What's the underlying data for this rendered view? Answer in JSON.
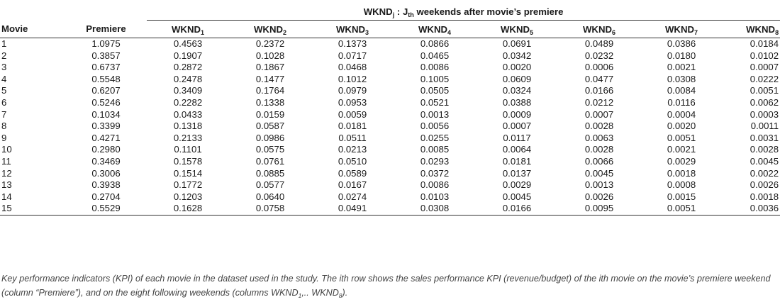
{
  "table": {
    "group_header": {
      "text": "WKND",
      "sub": "j",
      "mid": " : J",
      "sub2": "th",
      "rest": " weekends after movie’s premiere"
    },
    "columns": [
      {
        "text": "Movie",
        "sub": ""
      },
      {
        "text": "Premiere",
        "sub": ""
      },
      {
        "text": "WKND",
        "sub": "1"
      },
      {
        "text": "WKND",
        "sub": "2"
      },
      {
        "text": "WKND",
        "sub": "3"
      },
      {
        "text": "WKND",
        "sub": "4"
      },
      {
        "text": "WKND",
        "sub": "5"
      },
      {
        "text": "WKND",
        "sub": "6"
      },
      {
        "text": "WKND",
        "sub": "7"
      },
      {
        "text": "WKND",
        "sub": "8"
      }
    ],
    "rows": [
      [
        "1",
        "1.0975",
        "0.4563",
        "0.2372",
        "0.1373",
        "0.0866",
        "0.0691",
        "0.0489",
        "0.0386",
        "0.0184"
      ],
      [
        "2",
        "0.3857",
        "0.1907",
        "0.1028",
        "0.0717",
        "0.0465",
        "0.0342",
        "0.0232",
        "0.0180",
        "0.0102"
      ],
      [
        "3",
        "0.6737",
        "0.2872",
        "0.1867",
        "0.0468",
        "0.0086",
        "0.0020",
        "0.0006",
        "0.0021",
        "0.0007"
      ],
      [
        "4",
        "0.5548",
        "0.2478",
        "0.1477",
        "0.1012",
        "0.1005",
        "0.0609",
        "0.0477",
        "0.0308",
        "0.0222"
      ],
      [
        "5",
        "0.6207",
        "0.3409",
        "0.1764",
        "0.0979",
        "0.0505",
        "0.0324",
        "0.0166",
        "0.0084",
        "0.0051"
      ],
      [
        "6",
        "0.5246",
        "0.2282",
        "0.1338",
        "0.0953",
        "0.0521",
        "0.0388",
        "0.0212",
        "0.0116",
        "0.0062"
      ],
      [
        "7",
        "0.1034",
        "0.0433",
        "0.0159",
        "0.0059",
        "0.0013",
        "0.0009",
        "0.0007",
        "0.0004",
        "0.0003"
      ],
      [
        "8",
        "0.3399",
        "0.1318",
        "0.0587",
        "0.0181",
        "0.0056",
        "0.0007",
        "0.0028",
        "0.0020",
        "0.0011"
      ],
      [
        "9",
        "0.4271",
        "0.2133",
        "0.0986",
        "0.0511",
        "0.0255",
        "0.0117",
        "0.0063",
        "0.0051",
        "0.0031"
      ],
      [
        "10",
        "0.2980",
        "0.1101",
        "0.0575",
        "0.0213",
        "0.0085",
        "0.0064",
        "0.0028",
        "0.0021",
        "0.0028"
      ],
      [
        "11",
        "0.3469",
        "0.1578",
        "0.0761",
        "0.0510",
        "0.0293",
        "0.0181",
        "0.0066",
        "0.0029",
        "0.0045"
      ],
      [
        "12",
        "0.3006",
        "0.1514",
        "0.0885",
        "0.0589",
        "0.0372",
        "0.0137",
        "0.0045",
        "0.0018",
        "0.0022"
      ],
      [
        "13",
        "0.3938",
        "0.1772",
        "0.0577",
        "0.0167",
        "0.0086",
        "0.0029",
        "0.0013",
        "0.0008",
        "0.0026"
      ],
      [
        "14",
        "0.2704",
        "0.1203",
        "0.0640",
        "0.0274",
        "0.0103",
        "0.0045",
        "0.0026",
        "0.0015",
        "0.0018"
      ],
      [
        "15",
        "0.5529",
        "0.1628",
        "0.0758",
        "0.0491",
        "0.0308",
        "0.0166",
        "0.0095",
        "0.0051",
        "0.0036"
      ]
    ]
  },
  "caption": {
    "part1": "Key performance indicators (KPI) of each movie in the dataset used in the study. The ith row shows the sales performance KPI (revenue/budget) of the ith movie on the movie’s premiere weekend (column “Premiere”), and on the eight following weekends (columns WKND",
    "sub1": "1",
    "part2": ",.. WKND",
    "sub2": "8",
    "part3": ")."
  }
}
